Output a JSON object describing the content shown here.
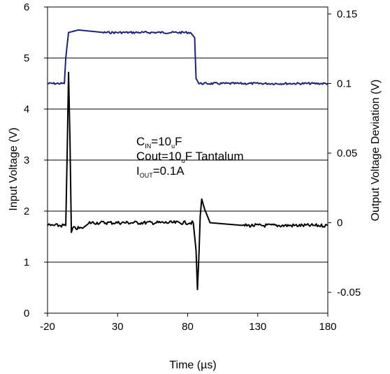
{
  "chart_data": {
    "type": "line",
    "xlabel": "Time (µs)",
    "ylabel_left": "Input Voltage (V)",
    "ylabel_right": "Output Voltage Deviation (V)",
    "x_ticks": [
      "-20",
      "30",
      "80",
      "130",
      "180"
    ],
    "xlim": [
      -20,
      180
    ],
    "y_left_ticks": [
      "0",
      "1",
      "2",
      "3",
      "4",
      "5",
      "6"
    ],
    "ylim_left": [
      0,
      6
    ],
    "y_right_ticks": [
      "-0.05",
      "0",
      "0.05",
      "0.1",
      "0.15"
    ],
    "ylim_right": [
      -0.065,
      0.155
    ],
    "grid": true,
    "annotation": {
      "line1_main": "C",
      "line1_sub": "IN",
      "line1_rest": "=10",
      "line1_sub2": "u",
      "line1_end": "F",
      "line2_main": "Cout=10",
      "line2_sub": "u",
      "line2_end": "F Tantalum",
      "line3_main": "I",
      "line3_sub": "OUT",
      "line3_end": "=0.1A"
    },
    "series": [
      {
        "axis": "left",
        "color": "#1a237e",
        "points": [
          [
            -20,
            4.5
          ],
          [
            -8,
            4.5
          ],
          [
            -7,
            5.0
          ],
          [
            -5,
            5.5
          ],
          [
            2,
            5.55
          ],
          [
            20,
            5.5
          ],
          [
            60,
            5.5
          ],
          [
            82,
            5.5
          ],
          [
            85,
            5.4
          ],
          [
            86,
            4.6
          ],
          [
            88,
            4.5
          ],
          [
            180,
            4.5
          ]
        ]
      },
      {
        "axis": "right",
        "color": "#000000",
        "points": [
          [
            -20,
            -0.002
          ],
          [
            -7,
            -0.002
          ],
          [
            -6,
            0.05
          ],
          [
            -5,
            0.108
          ],
          [
            -4,
            0.06
          ],
          [
            -3,
            -0.007
          ],
          [
            -2,
            -0.004
          ],
          [
            5,
            -0.004
          ],
          [
            10,
            0.0
          ],
          [
            20,
            0.0
          ],
          [
            50,
            0.0
          ],
          [
            84,
            0.0
          ],
          [
            86,
            -0.02
          ],
          [
            87,
            -0.048
          ],
          [
            88,
            -0.025
          ],
          [
            89,
            0.005
          ],
          [
            90,
            0.017
          ],
          [
            92,
            0.01
          ],
          [
            96,
            0.0
          ],
          [
            120,
            -0.002
          ],
          [
            180,
            -0.002
          ]
        ]
      }
    ]
  }
}
